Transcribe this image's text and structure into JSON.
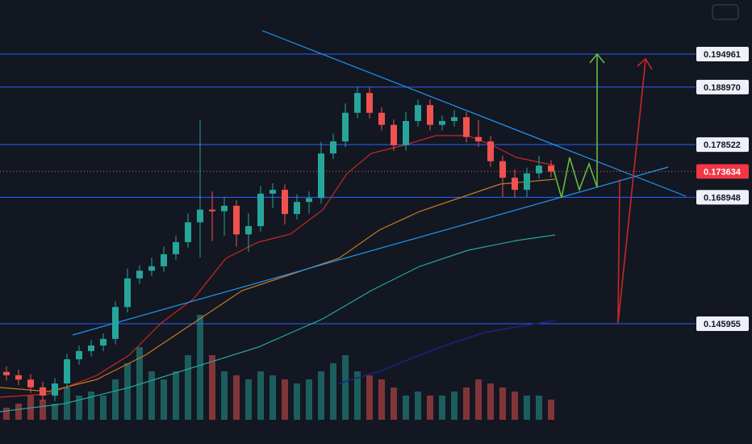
{
  "chart_data": {
    "type": "candlestick",
    "ylim": [
      0.1241,
      0.2048
    ],
    "levels": [
      0.194961,
      {
        "value": 0.18897,
        "label": "0.188970"
      },
      0.178522,
      0.168948,
      0.145955
    ],
    "last_price": 0.173634,
    "up_color": "#26a69a",
    "down_color": "#ef5350",
    "vlim": [
      0,
      400
    ],
    "open": [
      0.1372,
      0.1366,
      0.1358,
      0.1344,
      0.1329,
      0.1351,
      0.1395,
      0.141,
      0.142,
      0.1432,
      0.149,
      0.1542,
      0.1556,
      0.1564,
      0.1586,
      0.1608,
      0.1644,
      0.1667,
      0.1664,
      0.1674,
      0.1622,
      0.1637,
      0.1696,
      0.1703,
      0.1659,
      0.1681,
      0.1688,
      0.1769,
      0.1791,
      0.1843,
      0.1879,
      0.1843,
      0.1821,
      0.1784,
      0.1828,
      0.1857,
      0.1821,
      0.1828,
      0.1835,
      0.1799,
      0.1791,
      0.1755,
      0.1725,
      0.1703,
      0.1733,
      0.1747
    ],
    "high": [
      0.1382,
      0.1376,
      0.1368,
      0.1354,
      0.1361,
      0.1405,
      0.142,
      0.143,
      0.1442,
      0.15,
      0.156,
      0.1566,
      0.158,
      0.16,
      0.162,
      0.166,
      0.183,
      0.17,
      0.169,
      0.1684,
      0.166,
      0.171,
      0.1715,
      0.1713,
      0.1695,
      0.17,
      0.179,
      0.1805,
      0.186,
      0.189,
      0.1889,
      0.1853,
      0.1831,
      0.1845,
      0.1867,
      0.1867,
      0.1838,
      0.1848,
      0.1845,
      0.183,
      0.1801,
      0.1765,
      0.174,
      0.1743,
      0.1765,
      0.1757
    ],
    "low": [
      0.1356,
      0.1348,
      0.1334,
      0.1319,
      0.1319,
      0.1341,
      0.1385,
      0.14,
      0.141,
      0.1422,
      0.148,
      0.1532,
      0.1546,
      0.1554,
      0.1576,
      0.1598,
      0.158,
      0.161,
      0.162,
      0.16,
      0.159,
      0.1627,
      0.167,
      0.164,
      0.1649,
      0.166,
      0.1678,
      0.1759,
      0.1781,
      0.1833,
      0.1833,
      0.1811,
      0.1774,
      0.1774,
      0.1818,
      0.1811,
      0.1811,
      0.1818,
      0.1789,
      0.1781,
      0.1745,
      0.169,
      0.169,
      0.169,
      0.1723,
      0.1726
    ],
    "close": [
      0.1366,
      0.1358,
      0.1344,
      0.1329,
      0.1351,
      0.1395,
      0.141,
      0.142,
      0.1432,
      0.149,
      0.1542,
      0.1556,
      0.1564,
      0.1586,
      0.1608,
      0.1644,
      0.1667,
      0.1664,
      0.1674,
      0.1622,
      0.1637,
      0.1696,
      0.1703,
      0.1659,
      0.1681,
      0.1688,
      0.1769,
      0.1791,
      0.1843,
      0.1879,
      0.1843,
      0.1821,
      0.1784,
      0.1828,
      0.1857,
      0.1821,
      0.1828,
      0.1835,
      0.1799,
      0.1791,
      0.1755,
      0.1725,
      0.1703,
      0.1733,
      0.1747,
      0.1736
    ],
    "volume": [
      15,
      20,
      30,
      25,
      20,
      40,
      30,
      35,
      30,
      50,
      70,
      90,
      60,
      50,
      60,
      80,
      130,
      80,
      60,
      55,
      50,
      60,
      55,
      50,
      45,
      50,
      60,
      70,
      80,
      60,
      55,
      50,
      40,
      30,
      35,
      30,
      30,
      35,
      40,
      50,
      45,
      40,
      35,
      30,
      30,
      25
    ]
  }
}
